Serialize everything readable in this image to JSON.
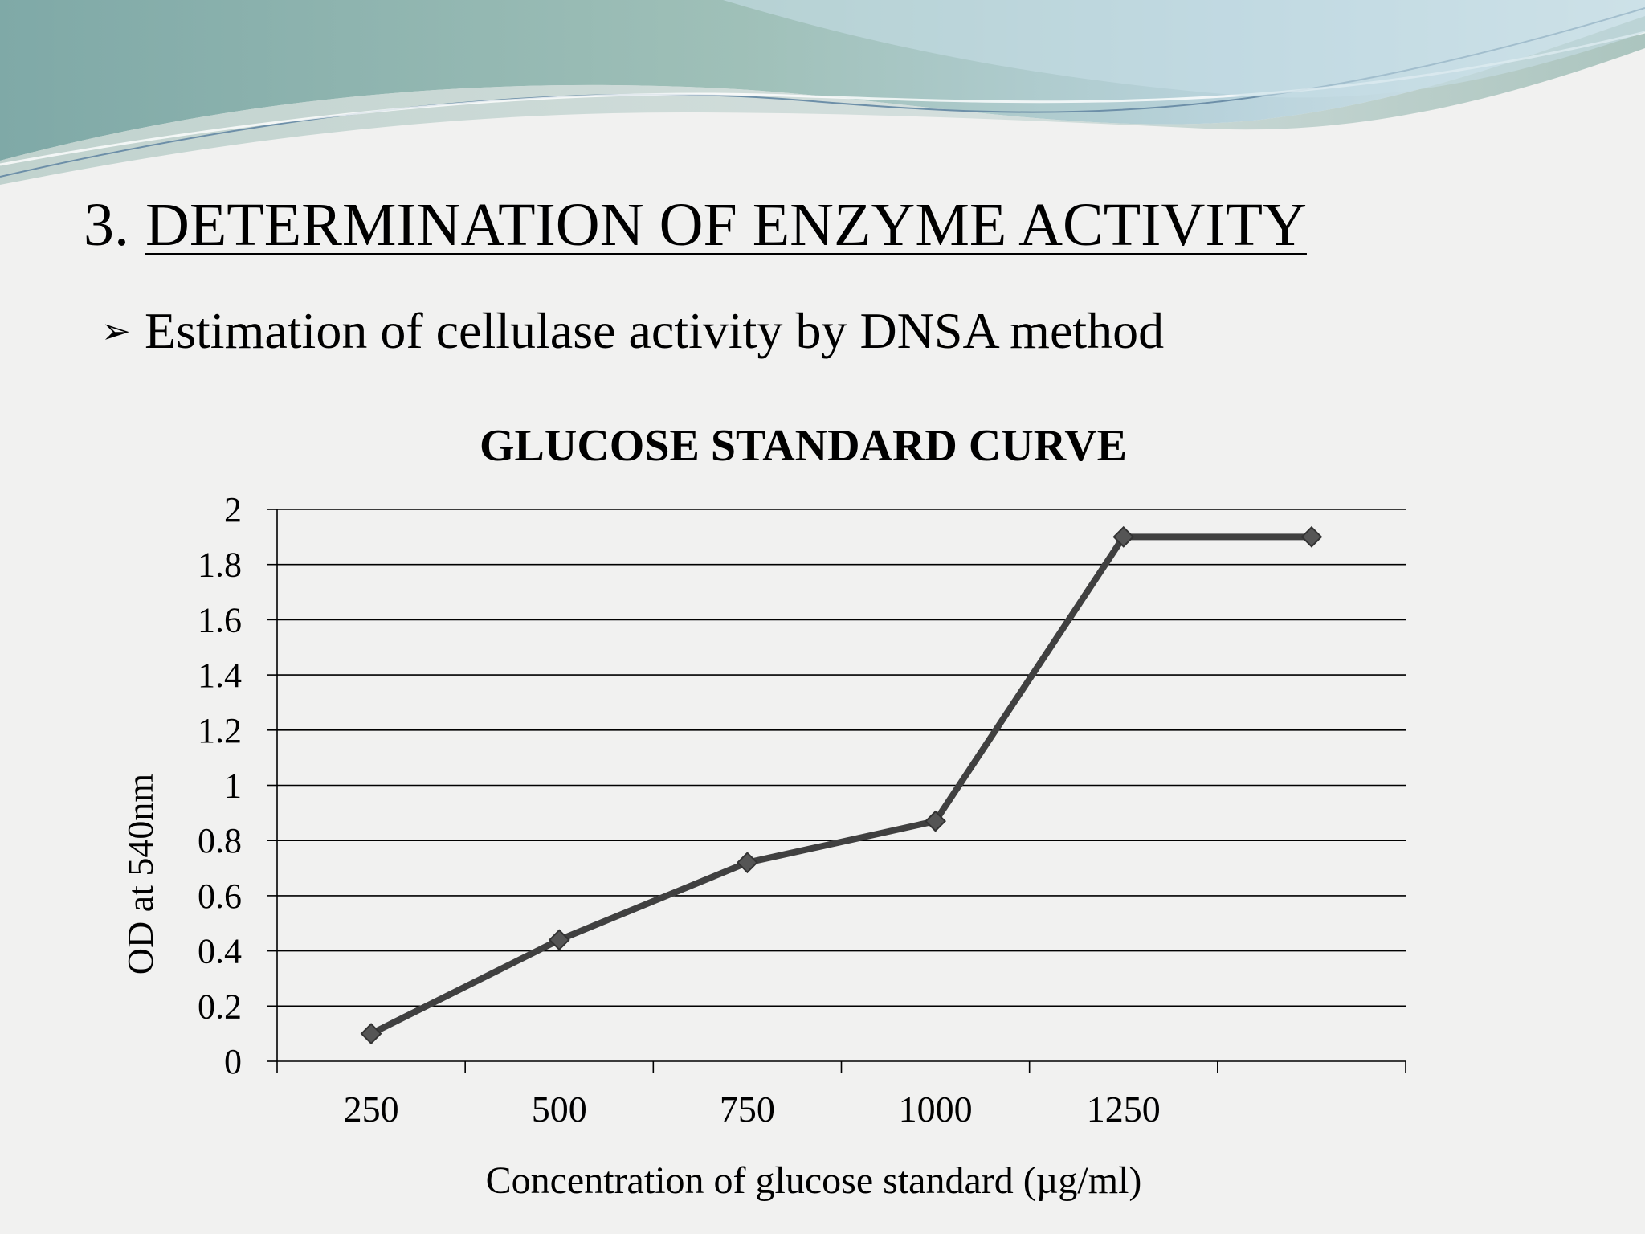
{
  "slide": {
    "heading_number": "3.",
    "heading_text": "DETERMINATION OF ENZYME ACTIVITY",
    "bullet_text": "Estimation of cellulase activity by DNSA method",
    "colors": {
      "line": "#404040",
      "grid": "#000000",
      "banner_teal": "#8fb6b4",
      "banner_blue": "#a9c9d8"
    }
  },
  "chart_data": {
    "type": "line",
    "title": "GLUCOSE STANDARD CURVE",
    "xlabel": "Concentration of glucose standard (µg/ml)",
    "ylabel": "OD at 540nm",
    "categories": [
      "250",
      "500",
      "750",
      "1000",
      "1250",
      ""
    ],
    "series": [
      {
        "values": [
          0.1,
          0.44,
          0.72,
          0.87,
          1.9,
          1.9
        ]
      }
    ],
    "ylim": [
      0,
      2
    ],
    "yticks": [
      "0",
      "0.2",
      "0.4",
      "0.6",
      "0.8",
      "1",
      "1.2",
      "1.4",
      "1.6",
      "1.8",
      "2"
    ],
    "grid": true,
    "marker": "diamond",
    "legend": "none"
  }
}
